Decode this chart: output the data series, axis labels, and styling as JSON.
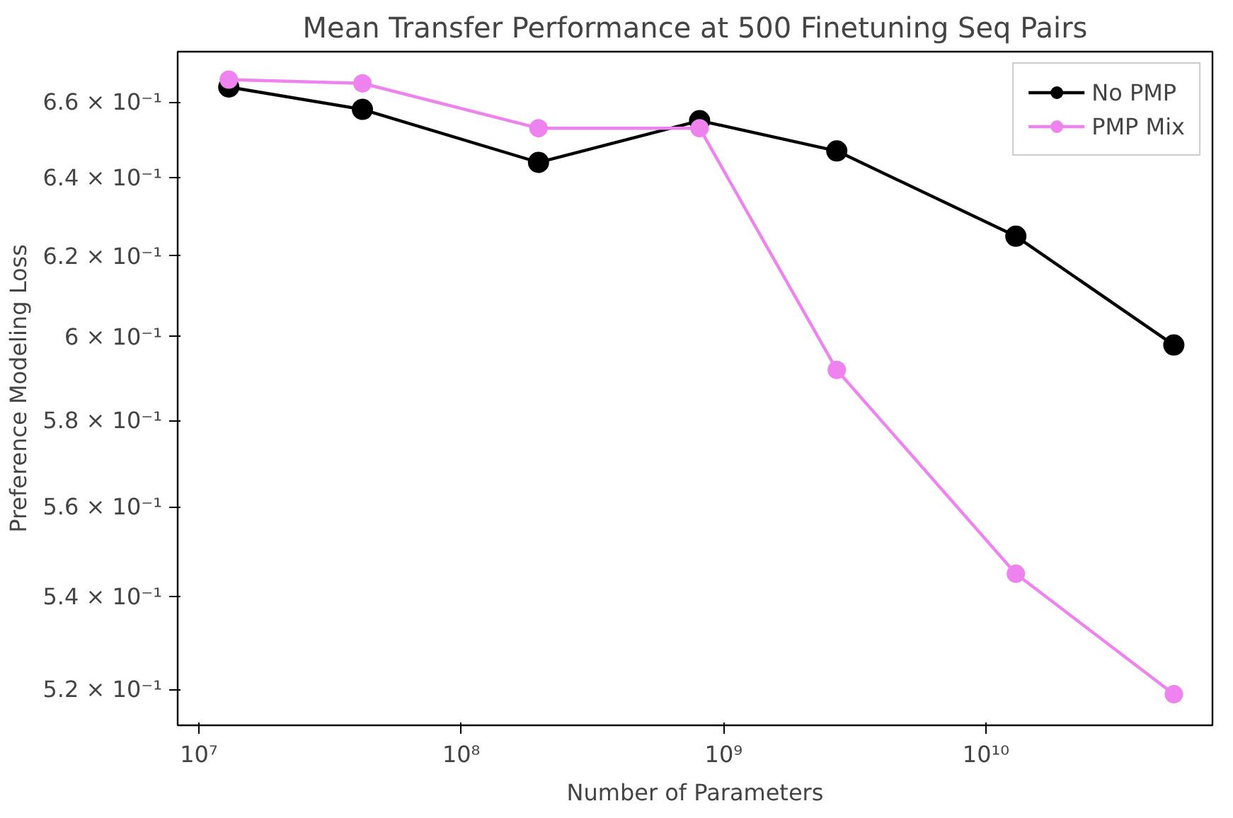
{
  "chart_data": {
    "type": "line",
    "title": "Mean Transfer Performance at 500 Finetuning Seq Pairs",
    "xlabel": "Number of Parameters",
    "ylabel": "Preference Modeling Loss",
    "x": [
      13000000,
      42000000,
      197000000,
      810000000,
      2700000000,
      13000000000,
      52000000000
    ],
    "series": [
      {
        "name": "No PMP",
        "color": "#000000",
        "values": [
          0.664,
          0.658,
          0.644,
          0.655,
          0.647,
          0.625,
          0.598
        ]
      },
      {
        "name": "PMP Mix",
        "color": "#ee82ee",
        "values": [
          0.666,
          0.665,
          0.653,
          0.653,
          0.592,
          0.545,
          0.519
        ]
      }
    ],
    "log": "xy",
    "xlim": [
      8300000,
      73000000000
    ],
    "ylim": [
      0.5125,
      0.6736
    ],
    "xticks": [
      {
        "value": 10000000,
        "label": "10⁷"
      },
      {
        "value": 100000000,
        "label": "10⁸"
      },
      {
        "value": 1000000000,
        "label": "10⁹"
      },
      {
        "value": 10000000000,
        "label": "10¹⁰"
      }
    ],
    "yticks": [
      {
        "value": 0.52,
        "label": "5.2 × 10⁻¹"
      },
      {
        "value": 0.54,
        "label": "5.4 × 10⁻¹"
      },
      {
        "value": 0.56,
        "label": "5.6 × 10⁻¹"
      },
      {
        "value": 0.58,
        "label": "5.8 × 10⁻¹"
      },
      {
        "value": 0.6,
        "label": "6 × 10⁻¹"
      },
      {
        "value": 0.62,
        "label": "6.2 × 10⁻¹"
      },
      {
        "value": 0.64,
        "label": "6.4 × 10⁻¹"
      },
      {
        "value": 0.66,
        "label": "6.6 × 10⁻¹"
      }
    ],
    "grid": false,
    "legend": "top right",
    "marker": "circle",
    "line_style": "solid"
  }
}
